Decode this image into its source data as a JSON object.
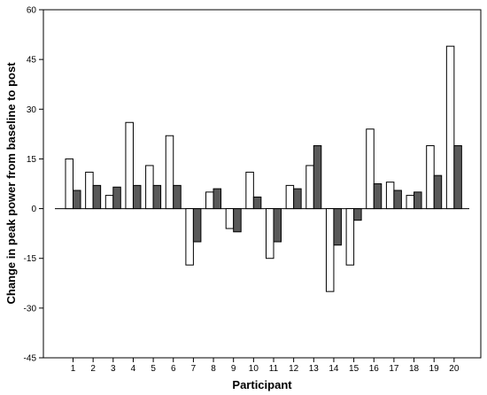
{
  "chart_data": {
    "type": "bar",
    "xlabel": "Participant",
    "ylabel": "Change in peak power from baseline to post",
    "ylim": [
      -45,
      60
    ],
    "yticks": [
      -45,
      -30,
      -15,
      0,
      15,
      30,
      45,
      60
    ],
    "grid": false,
    "legend": "none",
    "categories": [
      "1",
      "2",
      "3",
      "4",
      "5",
      "6",
      "7",
      "8",
      "9",
      "10",
      "11",
      "12",
      "13",
      "14",
      "15",
      "16",
      "17",
      "18",
      "19",
      "20"
    ],
    "series": [
      {
        "color": "#ffffff",
        "values": [
          15,
          11,
          4,
          26,
          13,
          22,
          -17,
          5,
          -6,
          11,
          -15,
          7,
          13,
          -25,
          -17,
          24,
          8,
          4,
          19,
          49
        ]
      },
      {
        "color": "#595959",
        "values": [
          5.5,
          7,
          6.5,
          7,
          7,
          7,
          -10,
          6,
          -7,
          3.5,
          -10,
          6,
          19,
          -11,
          -3.5,
          7.5,
          5.5,
          5,
          10,
          19
        ]
      }
    ]
  }
}
